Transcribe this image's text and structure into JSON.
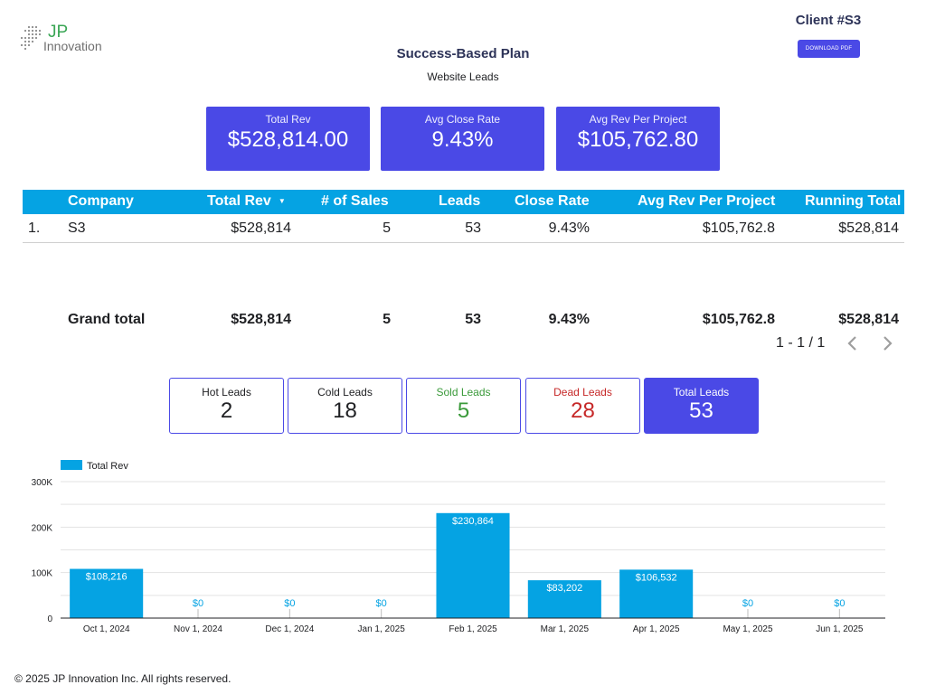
{
  "logo": {
    "line1": "JP",
    "line2": "Innovation"
  },
  "header": {
    "title": "Success-Based Plan",
    "subtitle": "Website Leads",
    "client": "Client #S3",
    "download_label": "DOWNLOAD PDF"
  },
  "kpis": [
    {
      "label": "Total Rev",
      "value": "$528,814.00"
    },
    {
      "label": "Avg Close Rate",
      "value": "9.43%"
    },
    {
      "label": "Avg Rev Per Project",
      "value": "$105,762.80"
    }
  ],
  "table": {
    "columns": [
      "Company",
      "Total Rev",
      "# of Sales",
      "Leads",
      "Close Rate",
      "Avg Rev Per Project",
      "Running Total"
    ],
    "sort_indicator": "▼",
    "rows": [
      {
        "index": "1.",
        "company": "S3",
        "total_rev": "$528,814",
        "sales": "5",
        "leads": "53",
        "close_rate": "9.43%",
        "avg_rev": "$105,762.8",
        "running_total": "$528,814"
      }
    ],
    "grand_total": {
      "label": "Grand total",
      "total_rev": "$528,814",
      "sales": "5",
      "leads": "53",
      "close_rate": "9.43%",
      "avg_rev": "$105,762.8",
      "running_total": "$528,814"
    },
    "pagination": "1 - 1 / 1"
  },
  "leads": [
    {
      "label": "Hot Leads",
      "value": "2",
      "color": "#202124"
    },
    {
      "label": "Cold Leads",
      "value": "18",
      "color": "#202124"
    },
    {
      "label": "Sold Leads",
      "value": "5",
      "color": "#3a9a3a"
    },
    {
      "label": "Dead Leads",
      "value": "28",
      "color": "#c62828"
    },
    {
      "label": "Total Leads",
      "value": "53",
      "color": "#ffffff"
    }
  ],
  "chart_data": {
    "type": "bar",
    "categories": [
      "Oct 1, 2024",
      "Nov 1, 2024",
      "Dec 1, 2024",
      "Jan 1, 2025",
      "Feb 1, 2025",
      "Mar 1, 2025",
      "Apr 1, 2025",
      "May 1, 2025",
      "Jun 1, 2025"
    ],
    "series": [
      {
        "name": "Total Rev",
        "values": [
          108216,
          0,
          0,
          0,
          230864,
          83202,
          106532,
          0,
          0
        ],
        "color": "#05a3e3"
      }
    ],
    "data_labels": [
      "$108,216",
      "$0",
      "$0",
      "$0",
      "$230,864",
      "$83,202",
      "$106,532",
      "$0",
      "$0"
    ],
    "ylim": [
      0,
      300000
    ],
    "yticks": [
      0,
      100000,
      200000,
      300000
    ],
    "ytick_labels": [
      "0",
      "100K",
      "200K",
      "300K"
    ],
    "grid": true,
    "legend": "top-left"
  },
  "footer": {
    "text": "© 2025 JP Innovation Inc.  All rights reserved."
  }
}
